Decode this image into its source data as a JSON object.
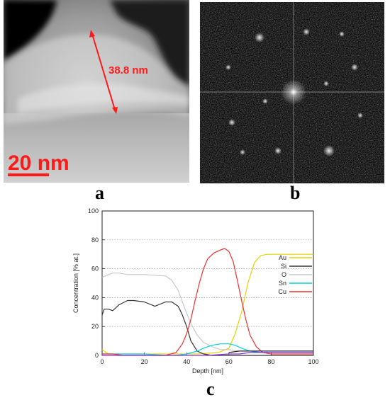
{
  "panel_a": {
    "measurement": "38.8 nm",
    "scale_bar": "20 nm",
    "label": "a"
  },
  "panel_b": {
    "label": "b"
  },
  "panel_c": {
    "label": "c"
  },
  "chart_data": {
    "type": "line",
    "xlabel": "Depth [nm]",
    "ylabel": "Concentration [% at.]",
    "xlim": [
      0,
      100
    ],
    "ylim": [
      0,
      100
    ],
    "xticks": [
      0,
      20,
      40,
      60,
      80,
      100
    ],
    "yticks": [
      0,
      20,
      40,
      60,
      80,
      100
    ],
    "grid": "dotted horizontal",
    "legend_position": "right",
    "series": [
      {
        "name": "Au",
        "color": "#e6d200",
        "x": [
          0,
          3,
          8,
          15,
          25,
          35,
          45,
          55,
          60,
          63,
          66,
          69,
          72,
          75,
          78,
          82,
          90,
          100
        ],
        "y": [
          4,
          1,
          1,
          1,
          1,
          1,
          1,
          2,
          5,
          15,
          30,
          50,
          64,
          69,
          70,
          70,
          70,
          70
        ]
      },
      {
        "name": "Si",
        "color": "#333333",
        "x": [
          0,
          1,
          3,
          5,
          8,
          12,
          15,
          20,
          25,
          30,
          33,
          36,
          38,
          40,
          42,
          45,
          48,
          52,
          56,
          60,
          70,
          80,
          100
        ],
        "y": [
          28,
          32,
          32,
          31,
          35,
          38,
          38,
          37,
          34,
          37,
          37,
          34,
          28,
          20,
          10,
          3,
          1,
          0,
          0,
          0,
          0,
          0,
          0
        ]
      },
      {
        "name": "O",
        "color": "#c8c8c8",
        "x": [
          0,
          3,
          5,
          8,
          12,
          20,
          30,
          33,
          36,
          39,
          42,
          45,
          48,
          52,
          56,
          60,
          65,
          70,
          80,
          100
        ],
        "y": [
          54,
          56,
          57,
          57,
          56,
          56,
          55,
          52,
          45,
          33,
          22,
          14,
          9,
          6,
          4,
          4,
          3,
          3,
          3,
          3
        ]
      },
      {
        "name": "Sn",
        "color": "#00d0e0",
        "x": [
          0,
          10,
          20,
          30,
          35,
          40,
          45,
          48,
          52,
          56,
          60,
          63,
          66,
          70,
          75,
          80,
          90,
          100
        ],
        "y": [
          1,
          1,
          1,
          0,
          0,
          1,
          3,
          5,
          7,
          8,
          8,
          7,
          5,
          3,
          2,
          2,
          2,
          2
        ]
      },
      {
        "name": "Cu",
        "color": "#ee3030",
        "x": [
          0,
          5,
          10,
          20,
          30,
          35,
          38,
          40,
          42,
          44,
          46,
          48,
          50,
          53,
          56,
          58,
          60,
          62,
          64,
          66,
          68,
          70,
          73,
          76,
          80,
          90,
          100
        ],
        "y": [
          1,
          1,
          0,
          0,
          0,
          2,
          8,
          15,
          25,
          38,
          50,
          60,
          67,
          71,
          73,
          74,
          72,
          65,
          52,
          38,
          25,
          14,
          6,
          2,
          1,
          1,
          1
        ]
      },
      {
        "name": "",
        "color": "#8a2be2",
        "x": [
          0,
          10,
          20,
          30,
          40,
          50,
          60,
          65,
          70,
          75,
          80,
          90,
          100
        ],
        "y": [
          0,
          0,
          0,
          0,
          0,
          0,
          1,
          1,
          2,
          2,
          2,
          2,
          2
        ]
      },
      {
        "name": "",
        "color": "#222222",
        "x": [
          60,
          65,
          70,
          75,
          80,
          85,
          90,
          95,
          100
        ],
        "y": [
          2,
          3,
          3,
          3,
          3,
          3,
          3,
          3,
          3
        ]
      }
    ]
  }
}
